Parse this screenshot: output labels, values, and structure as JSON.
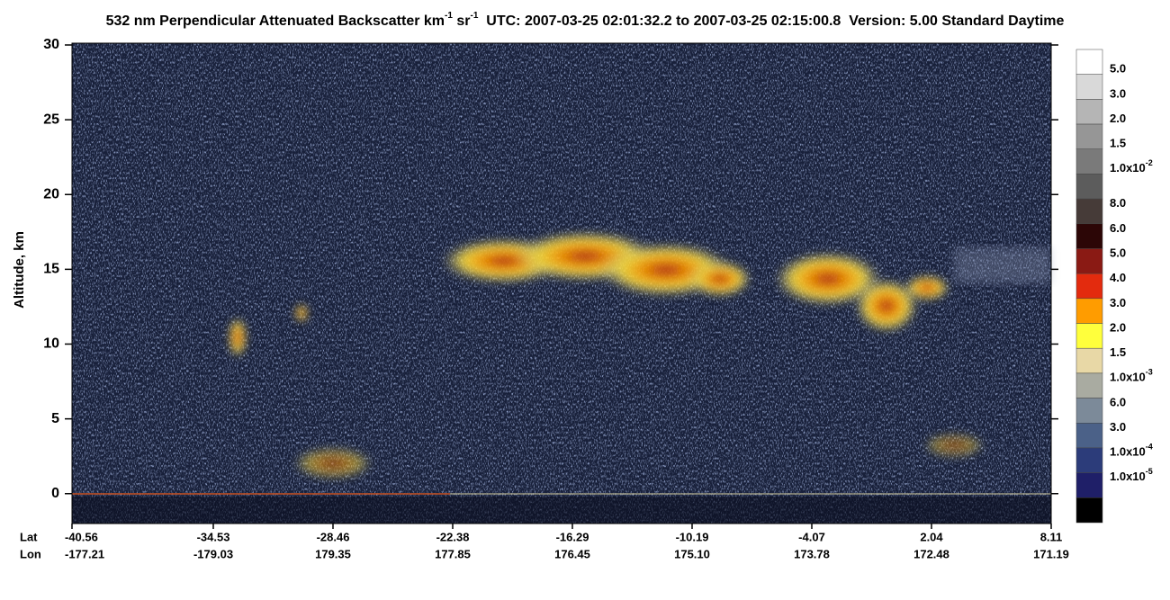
{
  "chart_data": {
    "type": "heatmap",
    "title_parts": [
      "532 nm Perpendicular Attenuated Backscatter km",
      "-1",
      " sr",
      "-1",
      "  UTC: 2007-03-25 02:01:32.2 to 2007-03-25 02:15:00.8  Version: 5.00 Standard Daytime"
    ],
    "y_label": "Altitude, km",
    "ylim": [
      -2,
      30
    ],
    "yticks": [
      0,
      5,
      10,
      15,
      20,
      25,
      30
    ],
    "x_row_labels": [
      "Lat",
      "Lon"
    ],
    "lat_ticks": [
      "-40.56",
      "-34.53",
      "-28.46",
      "-22.38",
      "-16.29",
      "-10.19",
      "-4.07",
      "2.04",
      "8.11"
    ],
    "lon_ticks": [
      "-177.21",
      "-179.03",
      "179.35",
      "177.85",
      "176.45",
      "175.10",
      "173.78",
      "172.48",
      "171.19"
    ],
    "colorbar_colors": [
      "#ffffff",
      "#d9d9d9",
      "#b5b5b5",
      "#969696",
      "#7a7a7a",
      "#5c5c5c",
      "#463b38",
      "#2c0606",
      "#8a1a14",
      "#e32b0e",
      "#ff9c00",
      "#ffff3c",
      "#e8d8a6",
      "#a9aba1",
      "#7c8a99",
      "#4b6188",
      "#2c3c7a",
      "#1f1f68",
      "#000000"
    ],
    "colorbar_labels": [
      "5.0",
      "3.0",
      "2.0",
      "1.5",
      {
        "base": "1.0x10",
        "exp": "-2"
      },
      "8.0",
      "6.0",
      "5.0",
      "4.0",
      "3.0",
      "2.0",
      "1.5",
      {
        "base": "1.0x10",
        "exp": "-3"
      },
      "6.0",
      "3.0",
      {
        "base": "1.0x10",
        "exp": "-4"
      },
      {
        "base": "1.0x10",
        "exp": "-5"
      }
    ]
  }
}
